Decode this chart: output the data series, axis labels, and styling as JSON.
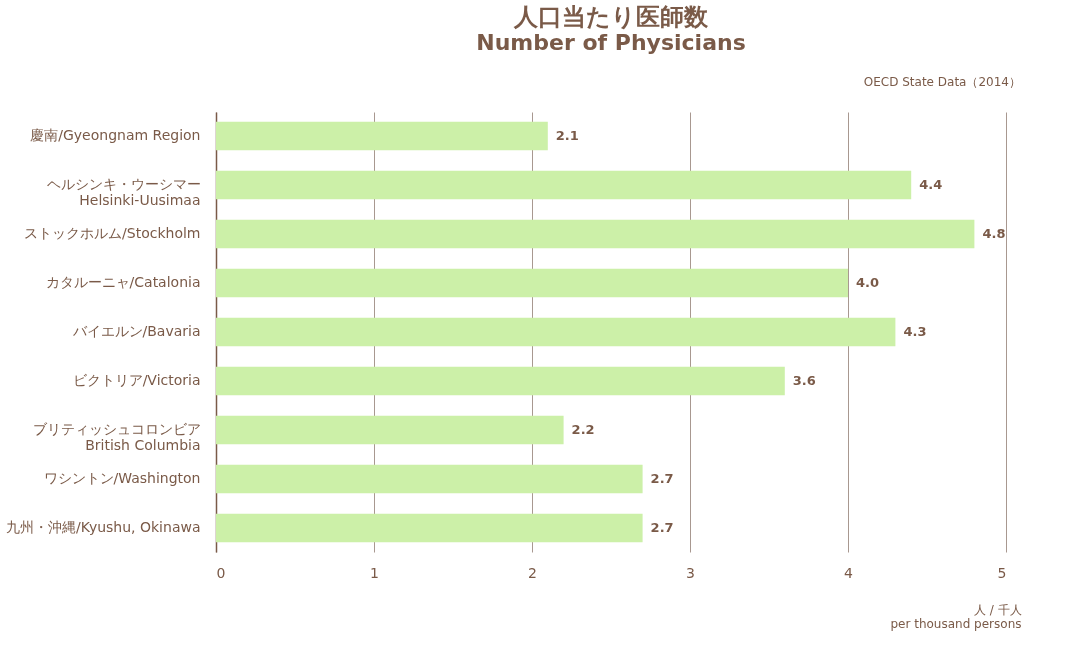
{
  "chart_data": {
    "type": "bar",
    "orientation": "horizontal",
    "title": "人口当たり医師数",
    "subtitle": "Number of Physicians",
    "annotations": [
      "OECD State Data（2014）"
    ],
    "xlabel": "人 / 千人\nper thousand persons",
    "categories": [
      "慶南/Gyeongnam Region",
      "ヘルシンキ・ウーシマー\nHelsinki-Uusimaa",
      "ストックホルム/Stockholm",
      "カタルーニャ/Catalonia",
      "バイエルン/Bavaria",
      "ビクトリア/Victoria",
      "ブリティッシュコロンビア\nBritish Columbia",
      "ワシントン/Washington",
      "九州・沖縄/Kyushu, Okinawa"
    ],
    "values": [
      2.1,
      4.4,
      4.8,
      4.0,
      4.3,
      3.6,
      2.2,
      2.7,
      2.7
    ],
    "color": "#ccf0a8",
    "xlim": [
      0,
      5
    ],
    "xticks": [
      0,
      1,
      2,
      3,
      4,
      5
    ],
    "value_labels": [
      "2.1",
      "4.4",
      "4.8",
      "4.0",
      "4.3",
      "3.6",
      "2.2",
      "2.7",
      "2.7"
    ],
    "grid": "x"
  }
}
